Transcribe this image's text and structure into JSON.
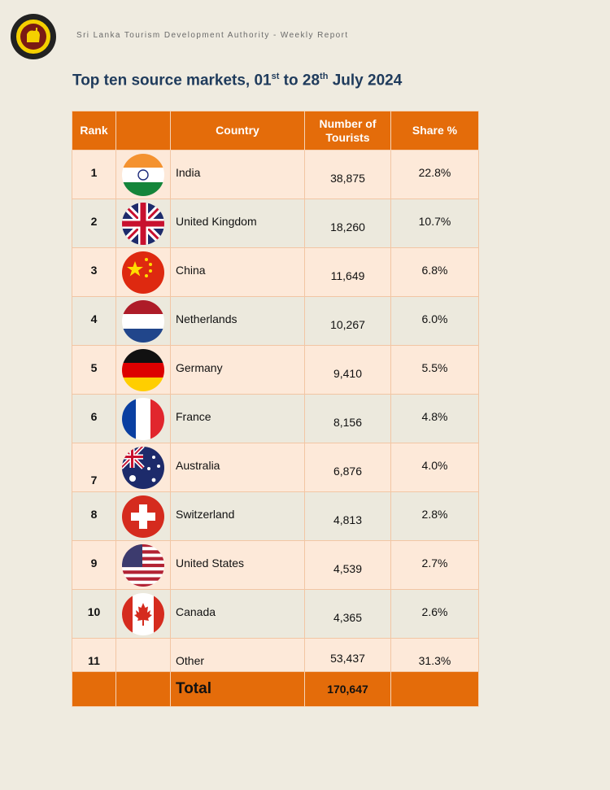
{
  "header": {
    "org_text": "Sri Lanka Tourism Development Authority - Weekly Report",
    "logo_icon": "sri-lanka-lion-emblem-icon"
  },
  "title": {
    "prefix": "Top ten source markets, 01",
    "sup1": "st",
    "middle": " to 28",
    "sup2": "th",
    "suffix": " July 2024"
  },
  "table": {
    "headers": {
      "rank": "Rank",
      "flag": "",
      "country": "Country",
      "tourists_line1": "Number of",
      "tourists_line2": "Tourists",
      "share": "Share %"
    },
    "rows": [
      {
        "rank": "1",
        "country": "India",
        "tourists": "38,875",
        "share": "22.8%",
        "flag_icon": "india-flag-icon"
      },
      {
        "rank": "2",
        "country": "United Kingdom",
        "tourists": "18,260",
        "share": "10.7%",
        "flag_icon": "uk-flag-icon"
      },
      {
        "rank": "3",
        "country": "China",
        "tourists": "11,649",
        "share": "6.8%",
        "flag_icon": "china-flag-icon"
      },
      {
        "rank": "4",
        "country": "Netherlands",
        "tourists": "10,267",
        "share": "6.0%",
        "flag_icon": "netherlands-flag-icon"
      },
      {
        "rank": "5",
        "country": "Germany",
        "tourists": "9,410",
        "share": "5.5%",
        "flag_icon": "germany-flag-icon"
      },
      {
        "rank": "6",
        "country": "France",
        "tourists": "8,156",
        "share": "4.8%",
        "flag_icon": "france-flag-icon"
      },
      {
        "rank": "7",
        "country": "Australia",
        "tourists": "6,876",
        "share": "4.0%",
        "flag_icon": "australia-flag-icon"
      },
      {
        "rank": "8",
        "country": "Switzerland",
        "tourists": "4,813",
        "share": "2.8%",
        "flag_icon": "switzerland-flag-icon"
      },
      {
        "rank": "9",
        "country": "United States",
        "tourists": "4,539",
        "share": "2.7%",
        "flag_icon": "usa-flag-icon"
      },
      {
        "rank": "10",
        "country": "Canada",
        "tourists": "4,365",
        "share": "2.6%",
        "flag_icon": "canada-flag-icon"
      },
      {
        "rank": "11",
        "country": "Other",
        "tourists": "53,437",
        "share": "31.3%",
        "flag_icon": ""
      }
    ],
    "total": {
      "label": "Total",
      "tourists": "170,647"
    }
  },
  "colors": {
    "header_orange": "#e46c0a",
    "row_peach": "#fde9d9",
    "row_beige": "#ece9dd",
    "title_navy": "#1f3b5c"
  }
}
